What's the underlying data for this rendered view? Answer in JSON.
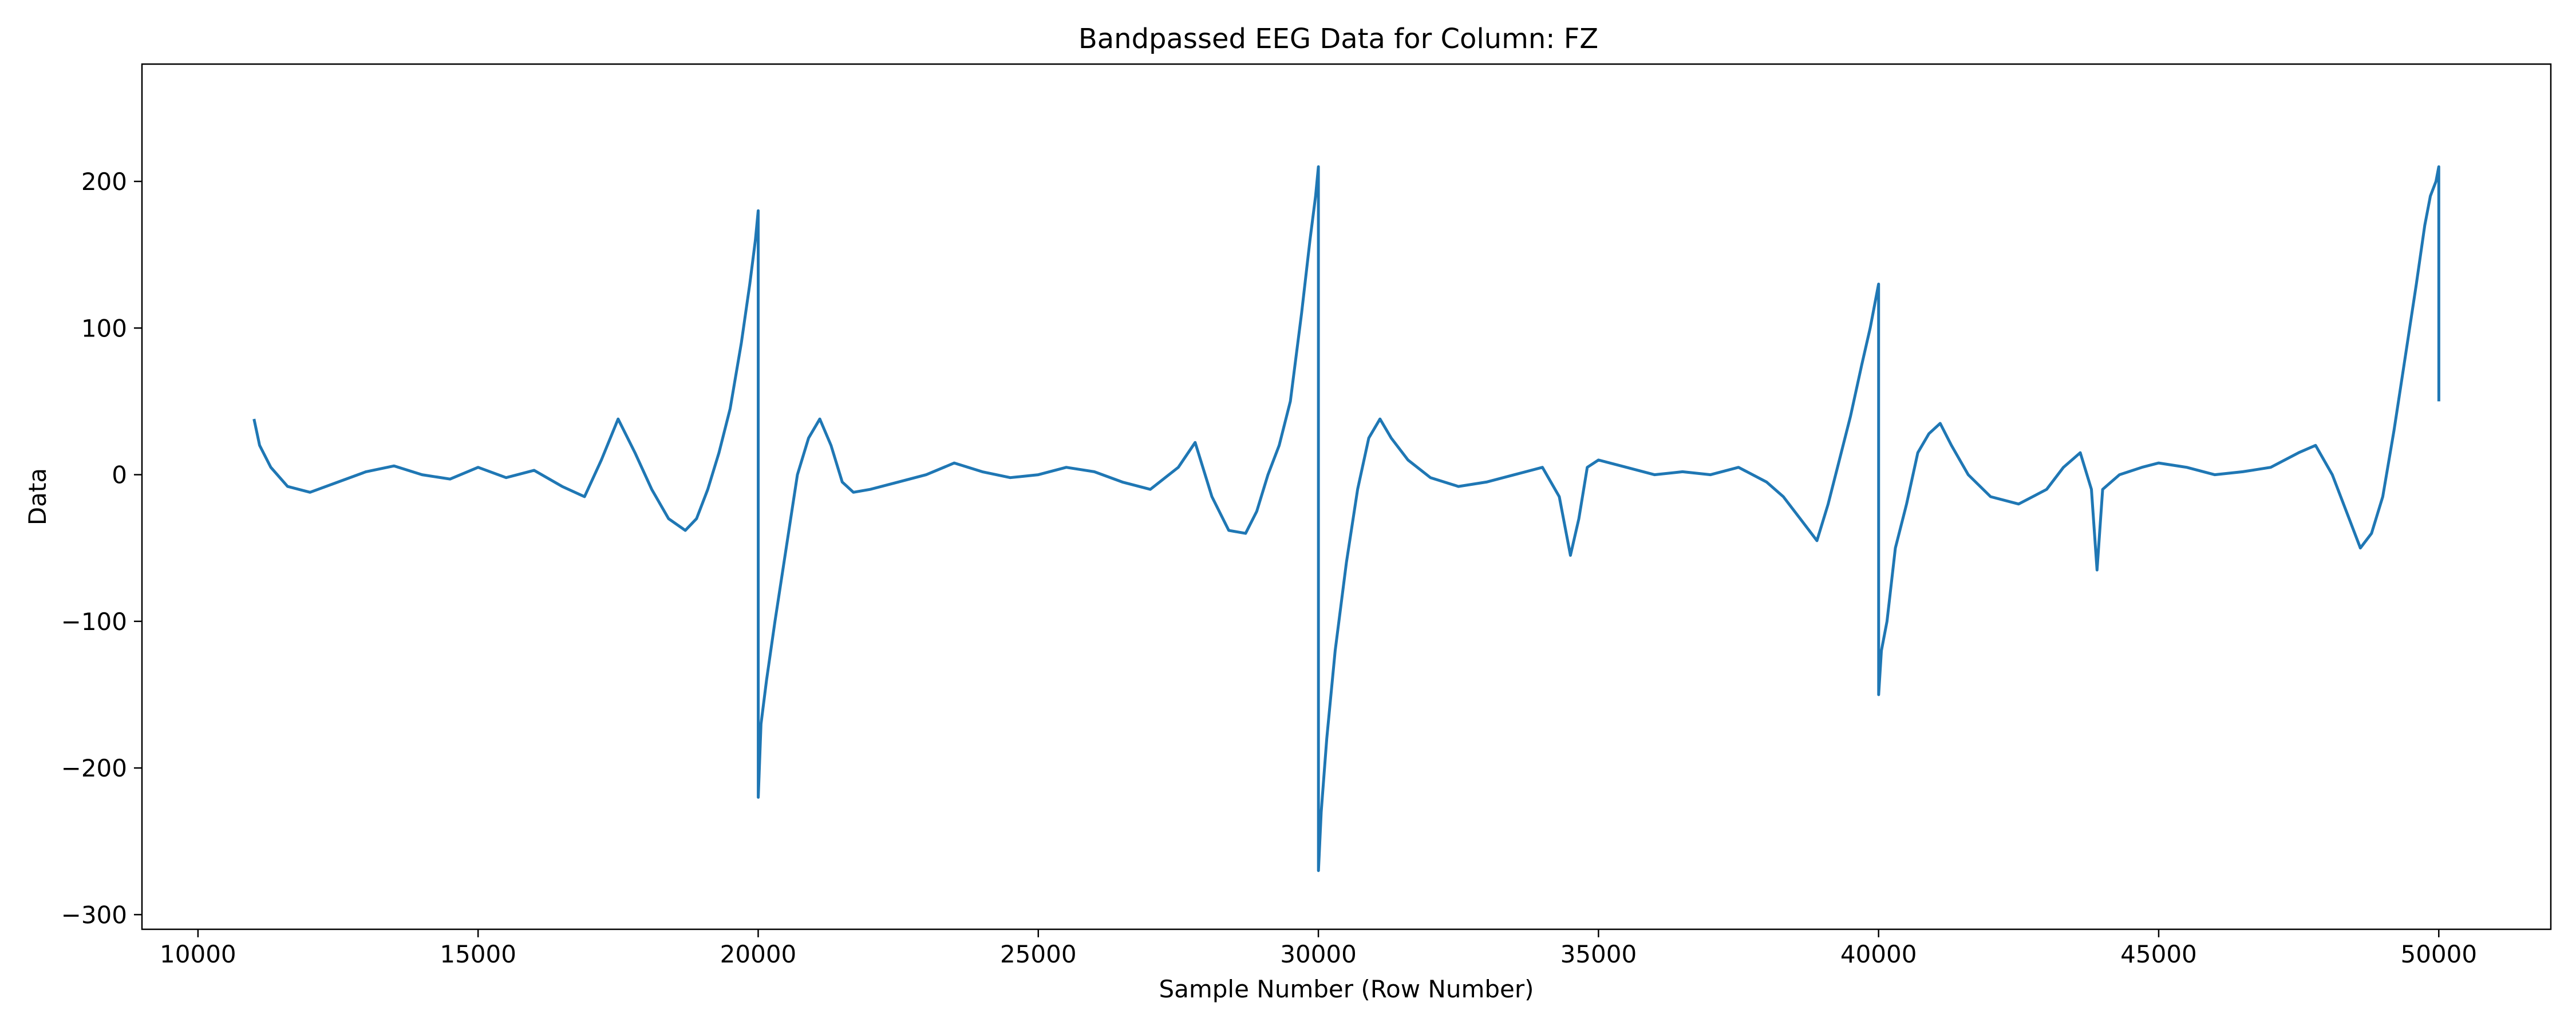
{
  "chart_data": {
    "type": "line",
    "title": "Bandpassed EEG Data for Column: FZ",
    "xlabel": "Sample Number (Row Number)",
    "ylabel": "Data",
    "xlim": [
      9000,
      52000
    ],
    "ylim": [
      -310,
      280
    ],
    "xticks": [
      10000,
      15000,
      20000,
      25000,
      30000,
      35000,
      40000,
      45000,
      50000
    ],
    "xtick_labels": [
      "10000",
      "15000",
      "20000",
      "25000",
      "30000",
      "35000",
      "40000",
      "45000",
      "50000"
    ],
    "yticks": [
      -300,
      -200,
      -100,
      0,
      100,
      200
    ],
    "ytick_labels": [
      "−300",
      "−200",
      "−100",
      "0",
      "100",
      "200"
    ],
    "grid": false,
    "legend": "none",
    "line_color": "#1f77b4",
    "series": [
      {
        "color": "#1f77b4",
        "x": [
          11000,
          11100,
          11300,
          11600,
          12000,
          12500,
          13000,
          13500,
          14000,
          14500,
          15000,
          15500,
          16000,
          16500,
          16900,
          17200,
          17500,
          17800,
          18100,
          18400,
          18700,
          18900,
          19100,
          19300,
          19500,
          19700,
          19850,
          19950,
          20000,
          20001,
          20050,
          20150,
          20300,
          20500,
          20700,
          20900,
          21100,
          21300,
          21500,
          21700,
          22000,
          22500,
          23000,
          23500,
          24000,
          24500,
          25000,
          25500,
          26000,
          26500,
          27000,
          27500,
          27800,
          28100,
          28400,
          28700,
          28900,
          29100,
          29300,
          29500,
          29700,
          29850,
          29950,
          30000,
          30001,
          30050,
          30150,
          30300,
          30500,
          30700,
          30900,
          31100,
          31300,
          31600,
          32000,
          32500,
          33000,
          33500,
          34000,
          34300,
          34500,
          34650,
          34800,
          35000,
          35500,
          36000,
          36500,
          37000,
          37500,
          38000,
          38300,
          38600,
          38900,
          39100,
          39300,
          39500,
          39700,
          39850,
          39950,
          40000,
          40001,
          40050,
          40150,
          40300,
          40500,
          40700,
          40900,
          41100,
          41300,
          41600,
          42000,
          42500,
          43000,
          43300,
          43600,
          43800,
          43900,
          44000,
          44300,
          44700,
          45000,
          45500,
          46000,
          46500,
          47000,
          47500,
          47800,
          48100,
          48400,
          48600,
          48800,
          49000,
          49200,
          49400,
          49600,
          49750,
          49850,
          49950,
          50000,
          50001
        ],
        "values": [
          38,
          20,
          5,
          -8,
          -12,
          -5,
          2,
          6,
          0,
          -3,
          5,
          -2,
          3,
          -8,
          -15,
          10,
          38,
          15,
          -10,
          -30,
          -38,
          -30,
          -10,
          15,
          45,
          90,
          130,
          160,
          180,
          -220,
          -170,
          -140,
          -100,
          -50,
          0,
          25,
          38,
          20,
          -5,
          -12,
          -10,
          -5,
          0,
          8,
          2,
          -2,
          0,
          5,
          2,
          -5,
          -10,
          5,
          22,
          -15,
          -38,
          -40,
          -25,
          0,
          20,
          50,
          110,
          160,
          190,
          210,
          -270,
          -230,
          -180,
          -120,
          -60,
          -10,
          25,
          38,
          25,
          10,
          -2,
          -8,
          -5,
          0,
          5,
          -15,
          -55,
          -30,
          5,
          10,
          5,
          0,
          2,
          0,
          5,
          -5,
          -15,
          -30,
          -45,
          -20,
          10,
          40,
          75,
          100,
          120,
          130,
          -150,
          -120,
          -100,
          -50,
          -20,
          15,
          28,
          35,
          20,
          0,
          -15,
          -20,
          -10,
          5,
          15,
          -10,
          -65,
          -10,
          0,
          5,
          8,
          5,
          0,
          2,
          5,
          15,
          20,
          0,
          -30,
          -50,
          -40,
          -15,
          30,
          80,
          130,
          170,
          190,
          200,
          210,
          50
        ]
      }
    ]
  }
}
